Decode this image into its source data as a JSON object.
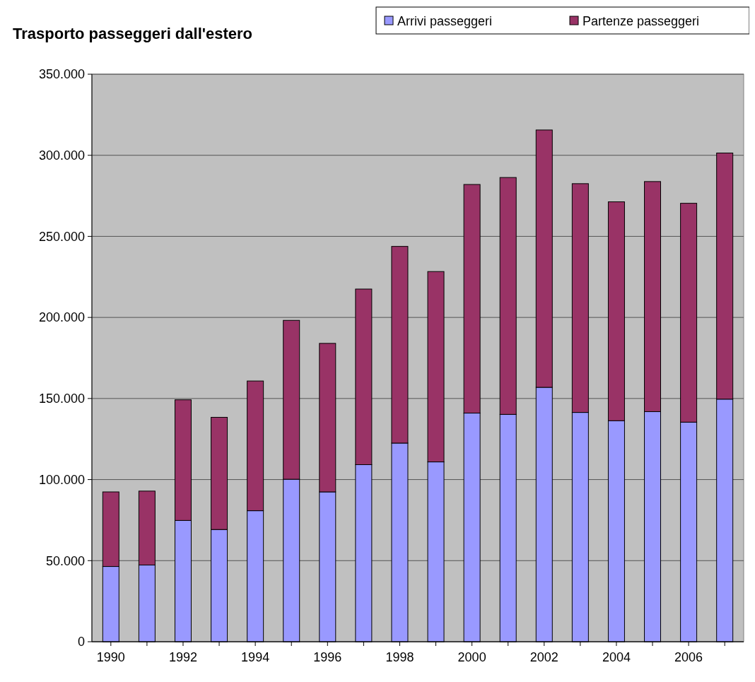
{
  "chart_data": {
    "type": "bar",
    "stacked": true,
    "title": "Trasporto passeggeri dall'estero",
    "categories": [
      "1990",
      null,
      "1992",
      null,
      "1994",
      null,
      "1996",
      null,
      "1998",
      null,
      "2000",
      null,
      "2002",
      null,
      "2004",
      null,
      "2006",
      null
    ],
    "series": [
      {
        "name": "Arrivi passeggeri",
        "color": "#9999ff",
        "values": [
          46400,
          47300,
          74800,
          69200,
          80800,
          100200,
          92400,
          109200,
          122500,
          110900,
          141000,
          140200,
          156900,
          141400,
          136300,
          141900,
          135400,
          149600
        ]
      },
      {
        "name": "Partenze passeggeri",
        "color": "#993366",
        "values": [
          46000,
          45600,
          74400,
          69200,
          80000,
          98000,
          91600,
          108300,
          121300,
          117400,
          141000,
          146100,
          158700,
          141100,
          135000,
          141900,
          135000,
          151800
        ]
      }
    ],
    "ylim": [
      0,
      350000
    ],
    "yticks": [
      0,
      {
        "value": 50000,
        "label": "50.000"
      },
      {
        "value": 100000,
        "label": "100.000"
      },
      {
        "value": 150000,
        "label": "150.000"
      },
      {
        "value": 200000,
        "label": "200.000"
      },
      {
        "value": 250000,
        "label": "250.000"
      },
      {
        "value": 300000,
        "label": "300.000"
      },
      {
        "value": 350000,
        "label": "350.000"
      }
    ],
    "grid": "y",
    "legend": "top right"
  }
}
